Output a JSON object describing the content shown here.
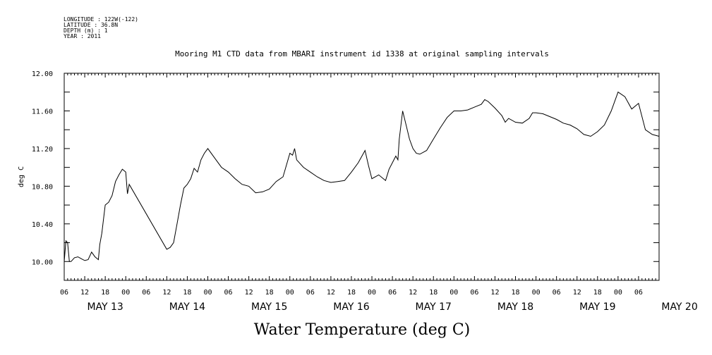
{
  "meta": [
    "LONGITUDE : 122W(-122)",
    "LATITUDE : 36.8N",
    "DEPTH (m) : 1",
    "YEAR : 2011"
  ],
  "chart_data": {
    "type": "line",
    "title": "Mooring M1 CTD data from MBARI instrument id 1338 at original sampling intervals",
    "xlabel": "Water Temperature (deg C)",
    "ylabel": "deg C",
    "ylim": [
      9.8,
      12.0
    ],
    "yticks": [
      "12.00",
      "11.60",
      "11.20",
      "10.80",
      "10.40",
      "10.00"
    ],
    "x_start": "May 13 06:00",
    "x_end": "May 20 06:00",
    "hour_ticks": [
      "06",
      "12",
      "18",
      "00",
      "06",
      "12",
      "18",
      "00",
      "06",
      "12",
      "18",
      "00",
      "06",
      "12",
      "18",
      "00",
      "06",
      "12",
      "18",
      "00",
      "06",
      "12",
      "18",
      "00",
      "06",
      "12",
      "18",
      "00",
      "06"
    ],
    "day_labels": [
      "MAY 13",
      "MAY 14",
      "MAY 15",
      "MAY 16",
      "MAY 17",
      "MAY 18",
      "MAY 19",
      "MAY 20"
    ],
    "series": [
      {
        "x_hours_from_may13_00": [
          6,
          6.5,
          7,
          7.5,
          8,
          9,
          10,
          11,
          12,
          13,
          14,
          15,
          16,
          16.4,
          17,
          17.5,
          18,
          19,
          20,
          21,
          22,
          23,
          24,
          24.5,
          25,
          36,
          37,
          38,
          39,
          40,
          41,
          42,
          43,
          44,
          45,
          46,
          47,
          48,
          50,
          52,
          54,
          56,
          58,
          60,
          62,
          64,
          66,
          68,
          70,
          72,
          72.8,
          73.4,
          74,
          76,
          78,
          80,
          82,
          84,
          86,
          88,
          90,
          92,
          94,
          95,
          96,
          98,
          100,
          101,
          102,
          103,
          103.6,
          104,
          105,
          106,
          107,
          108,
          109,
          110,
          112,
          114,
          116,
          118,
          120,
          122,
          124,
          126,
          128,
          129,
          130,
          132,
          134,
          135,
          136,
          138,
          140,
          142,
          143,
          144,
          146,
          148,
          150,
          152,
          154,
          156,
          158,
          160,
          162,
          164,
          166,
          168,
          170,
          172,
          174,
          176,
          178,
          180
        ],
        "y": [
          10.0,
          10.22,
          10.2,
          10.0,
          10.0,
          10.04,
          10.05,
          10.03,
          10.01,
          10.02,
          10.1,
          10.05,
          10.02,
          10.18,
          10.3,
          10.45,
          10.6,
          10.63,
          10.7,
          10.85,
          10.92,
          10.98,
          10.95,
          10.72,
          10.82,
          10.13,
          10.15,
          10.2,
          10.4,
          10.6,
          10.78,
          10.82,
          10.88,
          10.99,
          10.95,
          11.08,
          11.15,
          11.2,
          11.1,
          11.0,
          10.95,
          10.88,
          10.82,
          10.8,
          10.73,
          10.74,
          10.77,
          10.85,
          10.9,
          11.15,
          11.13,
          11.2,
          11.08,
          11.0,
          10.95,
          10.9,
          10.86,
          10.84,
          10.85,
          10.86,
          10.95,
          11.05,
          11.18,
          11.02,
          10.88,
          10.92,
          10.86,
          10.98,
          11.05,
          11.12,
          11.08,
          11.3,
          11.6,
          11.45,
          11.3,
          11.2,
          11.15,
          11.14,
          11.18,
          11.3,
          11.42,
          11.53,
          11.6,
          11.6,
          11.61,
          11.64,
          11.67,
          11.72,
          11.7,
          11.63,
          11.55,
          11.48,
          11.52,
          11.48,
          11.47,
          11.52,
          11.58,
          11.58,
          11.57,
          11.54,
          11.51,
          11.47,
          11.45,
          11.41,
          11.35,
          11.33,
          11.38,
          11.45,
          11.6,
          11.8,
          11.75,
          11.62,
          11.68,
          11.4,
          11.35,
          11.33,
          11.21
        ]
      }
    ]
  }
}
